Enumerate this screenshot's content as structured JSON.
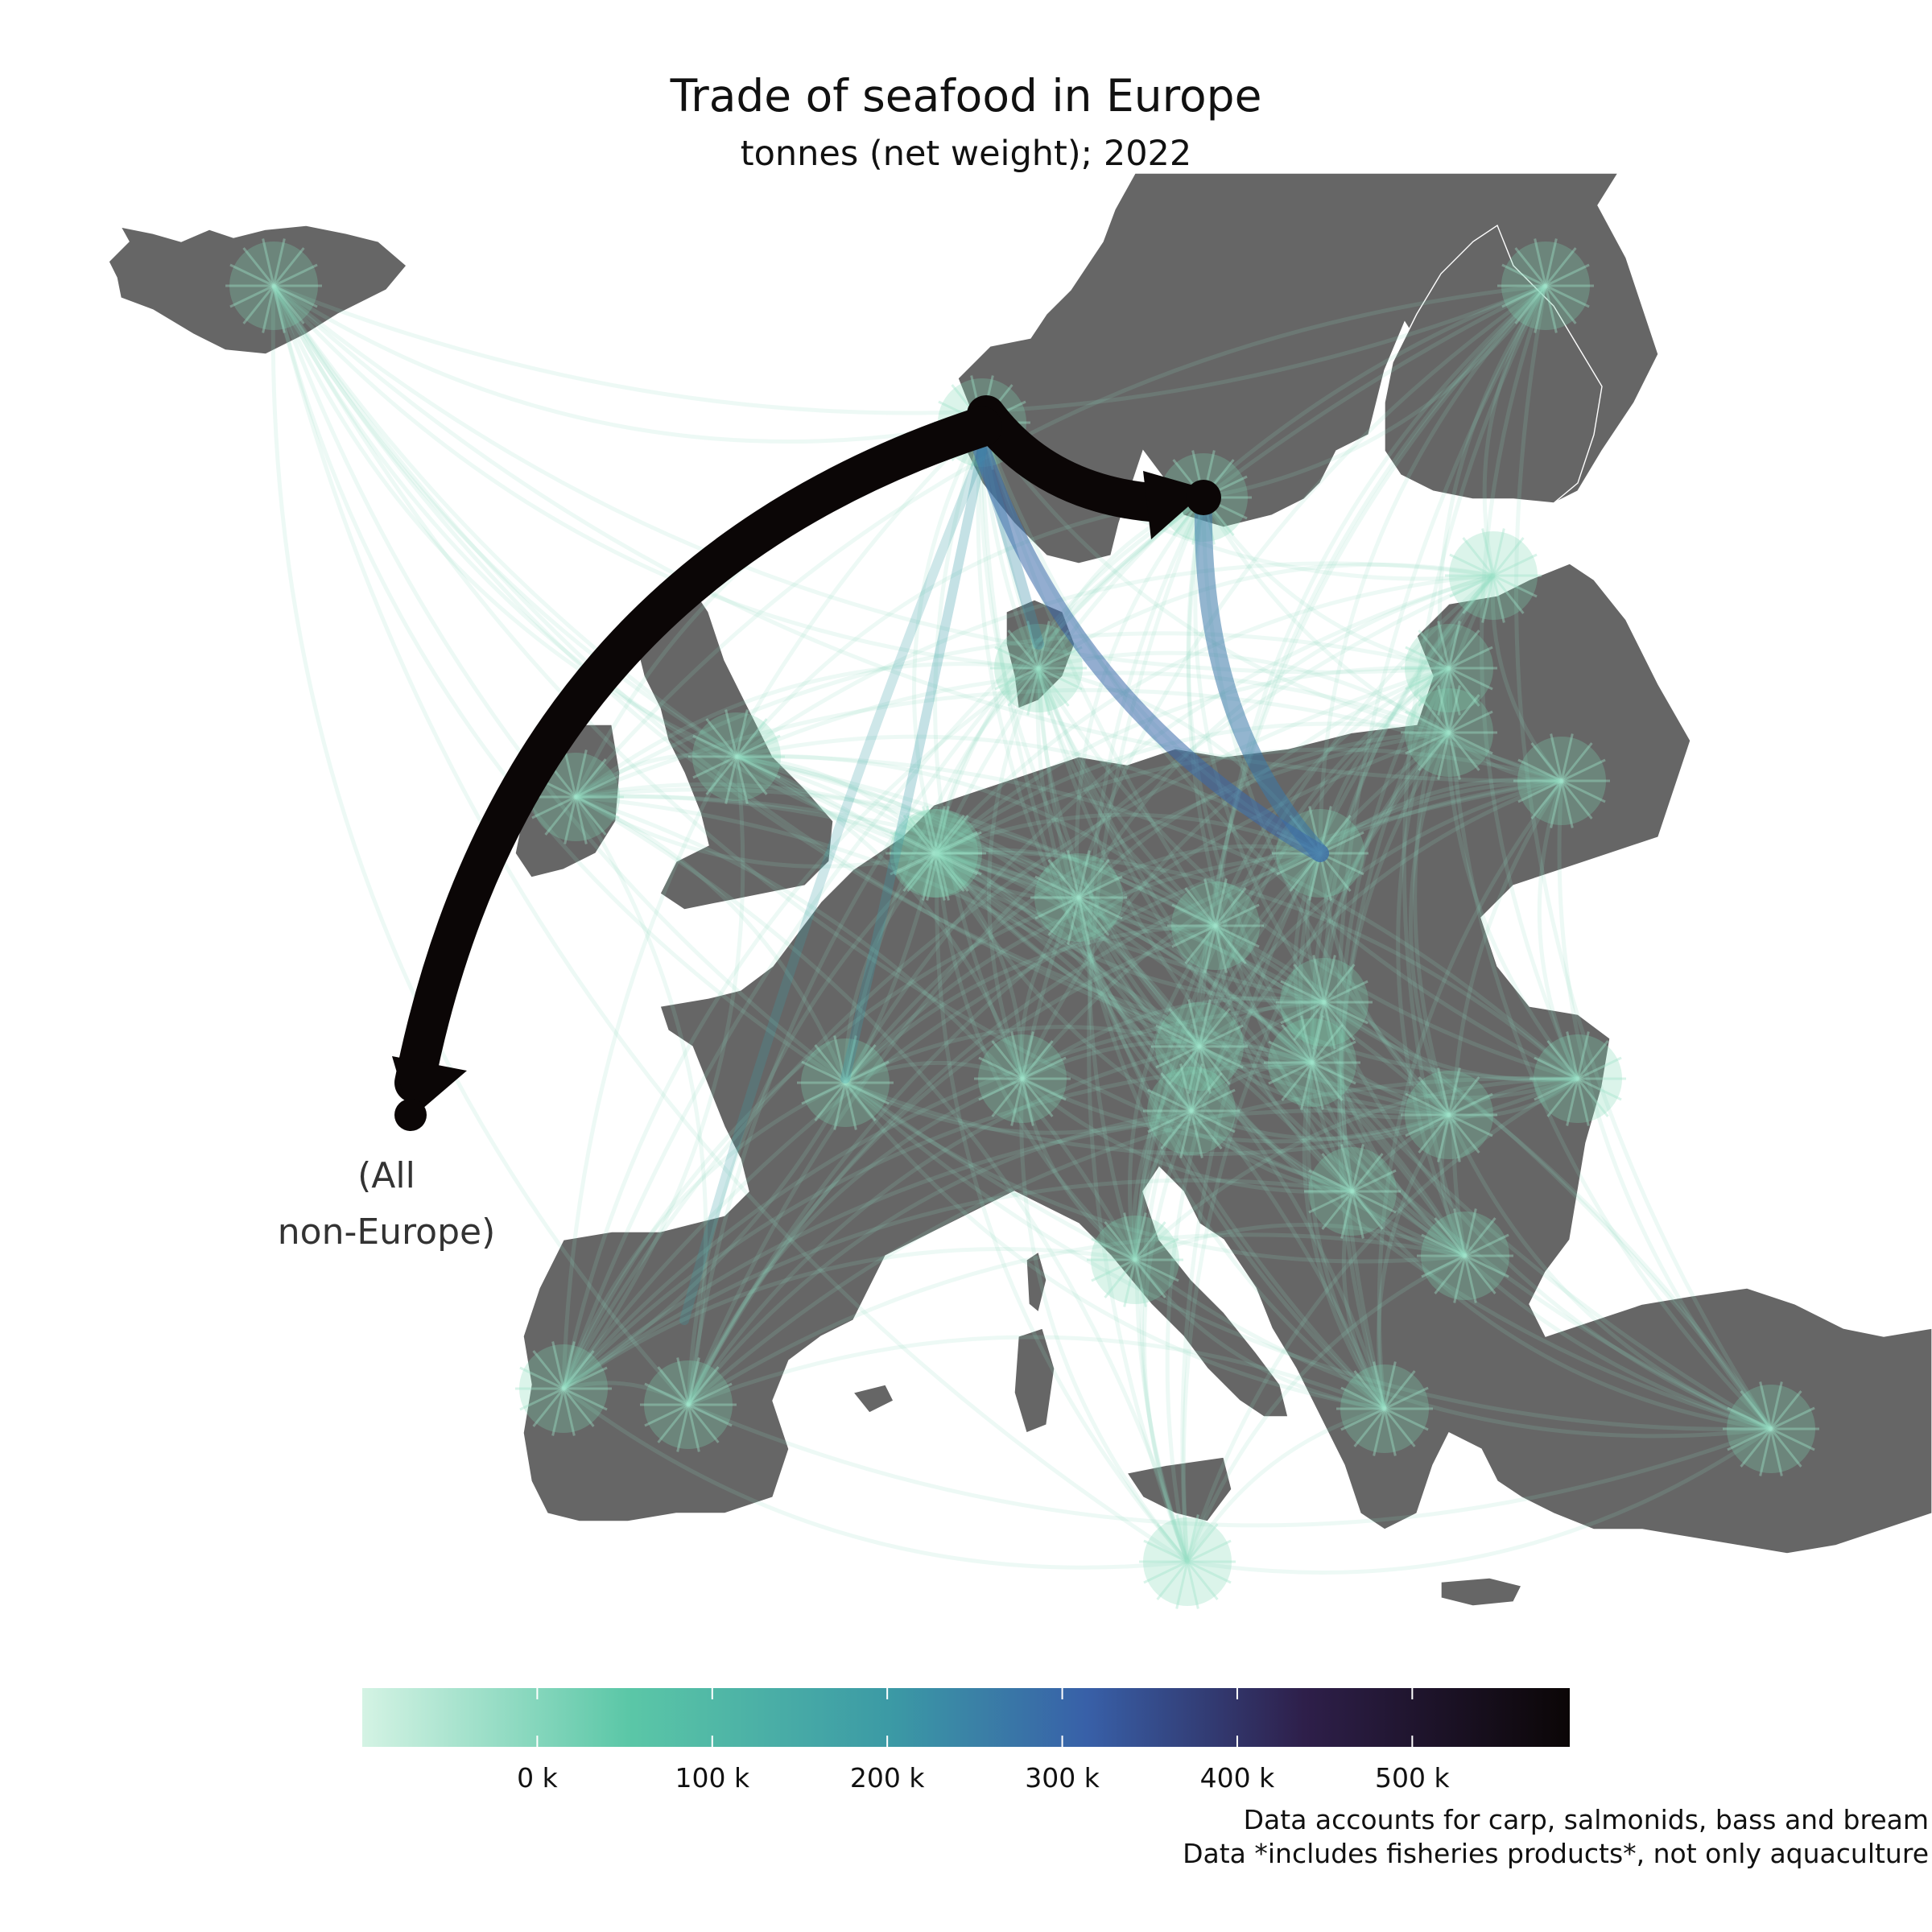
{
  "title": "Trade of seafood in Europe",
  "subtitle": "tonnes (net weight); 2022",
  "origin_label_line1": "(All",
  "origin_label_line2": "non-Europe)",
  "footnote_line1": "Data accounts for carp, salmonids, bass and bream",
  "footnote_line2": "Data *includes fisheries products*, not only aquaculture",
  "colors": {
    "land": "#666666",
    "background": "#ffffff",
    "flow_low": "#b6ead2",
    "flow_mid": "#5bc7a7",
    "flow_high": "#0b0606"
  },
  "chart_data": {
    "type": "map",
    "colorbar": {
      "ticks": [
        "0 k",
        "100 k",
        "200 k",
        "300 k",
        "400 k",
        "500 k"
      ],
      "tick_values": [
        0,
        100000,
        200000,
        300000,
        400000,
        500000
      ],
      "range": [
        -100000,
        590000
      ]
    },
    "major_flows": [
      {
        "from": "Norway",
        "to": "(All non-Europe)",
        "tonnes": 590000
      },
      {
        "from": "Norway",
        "to": "Sweden",
        "tonnes": 560000
      },
      {
        "from": "Norway",
        "to": "Poland",
        "tonnes": 250000
      },
      {
        "from": "Sweden",
        "to": "Poland",
        "tonnes": 220000
      },
      {
        "from": "Norway",
        "to": "Denmark",
        "tonnes": 190000
      },
      {
        "from": "Norway",
        "to": "France",
        "tonnes": 150000
      },
      {
        "from": "Norway",
        "to": "Spain",
        "tonnes": 140000
      }
    ]
  }
}
